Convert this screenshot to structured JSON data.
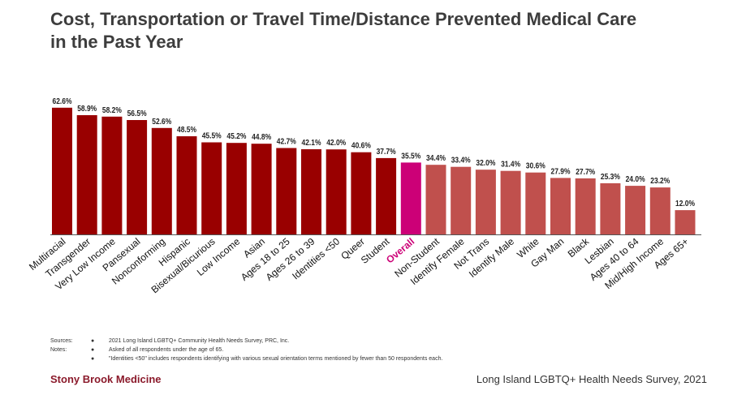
{
  "title": "Cost, Transportation or Travel Time/Distance Prevented Medical Care\nin the Past Year",
  "colors": {
    "above_overall": "#990000",
    "overall": "#cc0077",
    "below_overall": "#c0504d",
    "axis": "#555555"
  },
  "chart_data": {
    "type": "bar",
    "title": "Cost, Transportation or Travel Time/Distance Prevented Medical Care in the Past Year",
    "categories": [
      "Multiracial",
      "Transgender",
      "Very Low Income",
      "Pansexual",
      "Nonconforming",
      "Hispanic",
      "Bisexual/Bicurious",
      "Low Income",
      "Asian",
      "Ages 18 to 25",
      "Ages 26 to 39",
      "Identities <50",
      "Queer",
      "Student",
      "Overall",
      "Non-Student",
      "Identify Female",
      "Not Trans",
      "Identify Male",
      "White",
      "Gay Man",
      "Black",
      "Lesbian",
      "Ages 40 to 64",
      "Mid/High Income",
      "Ages 65+"
    ],
    "values": [
      62.6,
      58.9,
      58.2,
      56.5,
      52.6,
      48.5,
      45.5,
      45.2,
      44.8,
      42.7,
      42.1,
      42.0,
      40.6,
      37.7,
      35.5,
      34.4,
      33.4,
      32.0,
      31.4,
      30.6,
      27.9,
      27.7,
      25.3,
      24.0,
      23.2,
      12.0
    ],
    "value_labels": [
      "62.6%",
      "58.9%",
      "58.2%",
      "56.5%",
      "52.6%",
      "48.5%",
      "45.5%",
      "45.2%",
      "44.8%",
      "42.7%",
      "42.1%",
      "42.0%",
      "40.6%",
      "37.7%",
      "35.5%",
      "34.4%",
      "33.4%",
      "32.0%",
      "31.4%",
      "30.6%",
      "27.9%",
      "27.7%",
      "25.3%",
      "24.0%",
      "23.2%",
      "12.0%"
    ],
    "highlight_category": "Overall",
    "ylim": [
      0,
      70
    ],
    "xlabel": "",
    "ylabel": "",
    "grid": false
  },
  "notes": [
    {
      "label": "Sources:",
      "bullet": "●",
      "text": "2021 Long Island LGBTQ+ Community Health Needs Survey, PRC, Inc."
    },
    {
      "label": "Notes:",
      "bullet": "●",
      "text": "Asked of all respondents under the age of 65."
    },
    {
      "label": "",
      "bullet": "●",
      "text": "\"Identities <50\" includes respondents identifying with various sexual orientation terms mentioned by fewer than 50 respondents each."
    }
  ],
  "footer": {
    "left": "Stony Brook Medicine",
    "right": "Long Island LGBTQ+ Health Needs Survey, 2021"
  }
}
